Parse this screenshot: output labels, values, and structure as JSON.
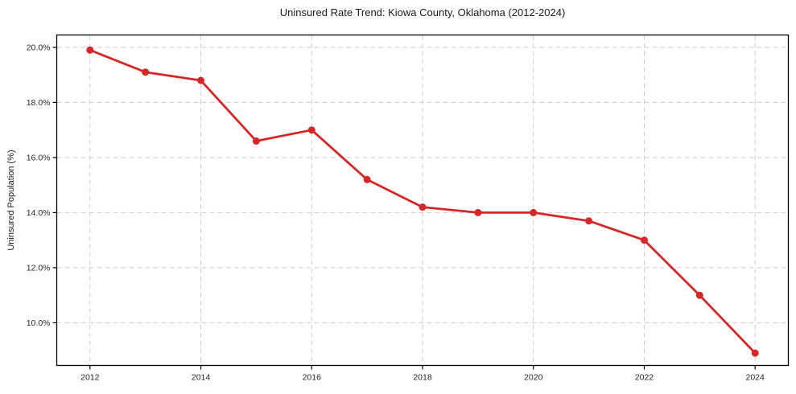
{
  "chart_data": {
    "type": "line",
    "title": "Uninsured Rate Trend: Kiowa County, Oklahoma (2012-2024)",
    "xlabel": "",
    "ylabel": "Uninsured Population (%)",
    "x": [
      2012,
      2013,
      2014,
      2015,
      2016,
      2017,
      2018,
      2019,
      2020,
      2021,
      2022,
      2023,
      2024
    ],
    "values": [
      19.9,
      19.1,
      18.8,
      16.6,
      17.0,
      15.2,
      14.2,
      14.0,
      14.0,
      13.7,
      13.0,
      11.0,
      8.9
    ],
    "xticks": [
      2012,
      2014,
      2016,
      2018,
      2020,
      2022,
      2024
    ],
    "xtick_labels": [
      "2012",
      "2014",
      "2016",
      "2018",
      "2020",
      "2022",
      "2024"
    ],
    "yticks": [
      10,
      12,
      14,
      16,
      18,
      20
    ],
    "ytick_labels": [
      "10.0%",
      "12.0%",
      "14.0%",
      "16.0%",
      "18.0%",
      "20.0%"
    ],
    "xlim": [
      2011.4,
      2024.6
    ],
    "ylim": [
      8.45,
      20.45
    ],
    "grid": true,
    "grid_style": "dashed",
    "legend_position": "none",
    "line_color": "#d62728",
    "marker": "circle",
    "grid_color": "#cccccc",
    "spine_color": "#000000",
    "text_color": "#262626",
    "background_color": "#ffffff"
  }
}
